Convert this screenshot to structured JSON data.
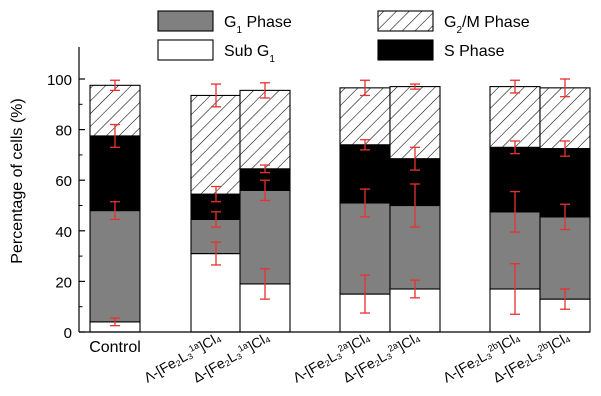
{
  "chart_data": {
    "type": "bar",
    "stacked": true,
    "ylabel": "Percentage of cells (%)",
    "ylim": [
      0,
      100
    ],
    "yticks": [
      0,
      20,
      40,
      60,
      80,
      100
    ],
    "categories": [
      {
        "main": "Control",
        "sup": "",
        "tail": ""
      },
      {
        "main": "Λ-[Fe₂L₃",
        "sup": "1a",
        "tail": "]Cl₄"
      },
      {
        "main": "Δ-[Fe₂L₃",
        "sup": "1a",
        "tail": "]Cl₄"
      },
      {
        "main": "Λ-[Fe₂L₃",
        "sup": "2a",
        "tail": "]Cl₄"
      },
      {
        "main": "Δ-[Fe₂L₃",
        "sup": "2a",
        "tail": "]Cl₄"
      },
      {
        "main": "Λ-[Fe₂L₃",
        "sup": "2b",
        "tail": "]Cl₄"
      },
      {
        "main": "Δ-[Fe₂L₃",
        "sup": "2b",
        "tail": "]Cl₄"
      }
    ],
    "legend": [
      {
        "main": "G",
        "sub": "1",
        "tail": " Phase",
        "pattern": "gray"
      },
      {
        "main": "G",
        "sub": "2",
        "tail": "/M Phase",
        "pattern": "hatch"
      },
      {
        "main": "Sub G",
        "sub": "1",
        "tail": "",
        "pattern": "white"
      },
      {
        "main": "S Phase",
        "sub": "",
        "tail": "",
        "pattern": "black"
      }
    ],
    "series": [
      {
        "key": "subg1",
        "pattern": "white",
        "values": [
          4,
          31,
          19,
          15,
          17,
          17,
          13
        ],
        "errors": [
          1.5,
          4.5,
          6,
          7.5,
          3.5,
          10,
          4
        ]
      },
      {
        "key": "g1",
        "pattern": "gray",
        "values": [
          44,
          13.5,
          37,
          36,
          33,
          30.5,
          32.5
        ],
        "errors": [
          3.5,
          3,
          4,
          5.5,
          8.5,
          8,
          5
        ]
      },
      {
        "key": "s",
        "pattern": "black",
        "values": [
          29.5,
          10,
          8.5,
          23,
          18.5,
          25.5,
          27
        ],
        "errors": [
          4.5,
          3,
          1.5,
          2,
          4.5,
          2.5,
          3
        ]
      },
      {
        "key": "g2m",
        "pattern": "hatch",
        "values": [
          20,
          39,
          31,
          22.5,
          28.5,
          24,
          24
        ],
        "errors": [
          2,
          4.5,
          3,
          3,
          1,
          2.5,
          3.5
        ]
      }
    ],
    "colors": {
      "gray": "#808080",
      "black": "#000000",
      "white": "#ffffff",
      "error": "#e8312f",
      "hatch": "#000000"
    }
  }
}
